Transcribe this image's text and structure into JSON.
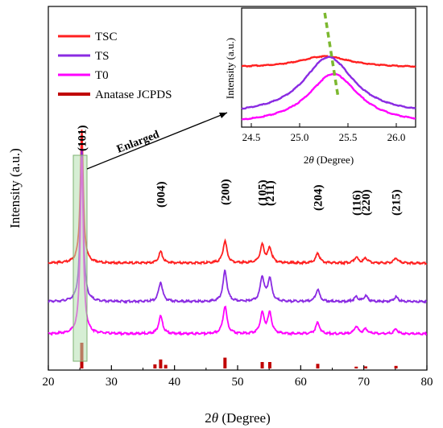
{
  "chart_data": [
    {
      "type": "line",
      "title": "",
      "xlabel_prefix": "2",
      "xlabel_italic": "θ",
      "xlabel_suffix": " (Degree)",
      "ylabel": "Intensity (a.u.)",
      "xlim": [
        20,
        80
      ],
      "xticks": [
        "20",
        "30",
        "40",
        "50",
        "60",
        "70",
        "80"
      ],
      "legend_placement": "top-left",
      "grid": false,
      "series": [
        {
          "name": "TSC",
          "color": "#ff2020",
          "baseline": 1.0,
          "peaks": [
            [
              25.3,
              1.65
            ],
            [
              37.8,
              0.14
            ],
            [
              48.0,
              0.27
            ],
            [
              53.9,
              0.22
            ],
            [
              55.1,
              0.18
            ],
            [
              62.7,
              0.12
            ],
            [
              68.8,
              0.07
            ],
            [
              70.3,
              0.06
            ],
            [
              75.1,
              0.06
            ]
          ]
        },
        {
          "name": "TS",
          "color": "#8a2be2",
          "baseline": 0.52,
          "peaks": [
            [
              25.3,
              1.9
            ],
            [
              37.8,
              0.24
            ],
            [
              48.0,
              0.38
            ],
            [
              53.9,
              0.3
            ],
            [
              55.1,
              0.28
            ],
            [
              62.7,
              0.15
            ],
            [
              68.8,
              0.06
            ],
            [
              70.3,
              0.07
            ],
            [
              75.1,
              0.06
            ]
          ]
        },
        {
          "name": "T0",
          "color": "#ff00ff",
          "baseline": 0.12,
          "peaks": [
            [
              25.3,
              2.2
            ],
            [
              37.8,
              0.22
            ],
            [
              48.0,
              0.34
            ],
            [
              53.9,
              0.25
            ],
            [
              55.1,
              0.25
            ],
            [
              62.7,
              0.14
            ],
            [
              68.8,
              0.09
            ],
            [
              70.3,
              0.06
            ],
            [
              75.1,
              0.06
            ]
          ]
        },
        {
          "name": "Anatase JCPDS",
          "color": "#c00000",
          "kind": "sticks",
          "sticks": [
            [
              25.3,
              1.0
            ],
            [
              36.9,
              0.16
            ],
            [
              37.8,
              0.35
            ],
            [
              38.6,
              0.14
            ],
            [
              48.0,
              0.42
            ],
            [
              53.9,
              0.25
            ],
            [
              55.1,
              0.25
            ],
            [
              62.7,
              0.18
            ],
            [
              68.8,
              0.07
            ],
            [
              70.3,
              0.08
            ],
            [
              75.1,
              0.1
            ]
          ]
        }
      ],
      "peak_labels": [
        {
          "x": 25.3,
          "label": "(101)"
        },
        {
          "x": 37.8,
          "label": "(004)"
        },
        {
          "x": 48.0,
          "label": "(200)"
        },
        {
          "x": 53.9,
          "label": "(105)"
        },
        {
          "x": 55.1,
          "label": "(211)"
        },
        {
          "x": 62.7,
          "label": "(204)"
        },
        {
          "x": 68.8,
          "label": "(116)"
        },
        {
          "x": 70.3,
          "label": "(220)"
        },
        {
          "x": 75.1,
          "label": "(215)"
        }
      ],
      "annotation": "Enlarged"
    },
    {
      "type": "line",
      "role": "inset",
      "xlabel_prefix": "2",
      "xlabel_italic": "θ",
      "xlabel_suffix": " (Degree)",
      "ylabel": "Intensity (a.u.)",
      "xlim": [
        24.4,
        26.2
      ],
      "xticks": [
        "24.5",
        "25.0",
        "25.5",
        "26.0"
      ],
      "series": [
        {
          "name": "TSC",
          "color": "#ff2020",
          "center": 25.26,
          "base": 0.71,
          "amp": 0.14
        },
        {
          "name": "TS",
          "color": "#8a2be2",
          "center": 25.3,
          "base": 0.12,
          "amp": 0.72
        },
        {
          "name": "T0",
          "color": "#ff00ff",
          "center": 25.35,
          "base": 0.0,
          "amp": 0.63
        }
      ],
      "shift_line": {
        "color": "#7cb82f",
        "x_top": 25.26,
        "x_bottom": 25.4
      }
    }
  ]
}
